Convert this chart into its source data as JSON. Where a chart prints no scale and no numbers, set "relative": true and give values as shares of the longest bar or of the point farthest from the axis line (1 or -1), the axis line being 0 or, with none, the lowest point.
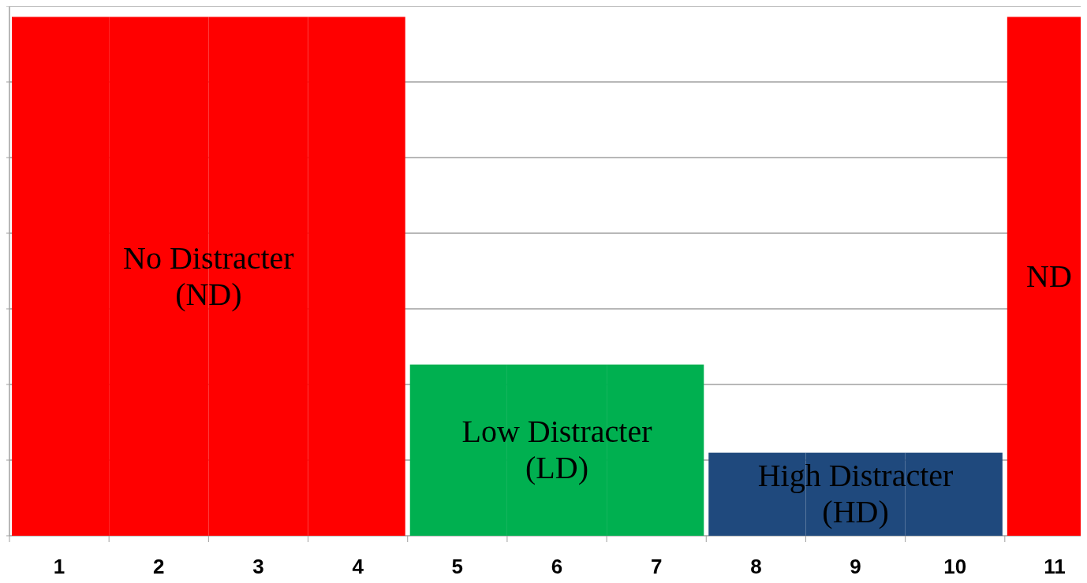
{
  "chart_data": {
    "type": "bar",
    "relative": true,
    "grid": true,
    "categories": [
      "1",
      "2",
      "3",
      "4",
      "5",
      "6",
      "7",
      "8",
      "9",
      "10",
      "11"
    ],
    "values": [
      1,
      1,
      1,
      1,
      0.33,
      0.33,
      0.33,
      0.16,
      0.16,
      0.16,
      1
    ],
    "colors": [
      "#ff0000",
      "#ff0000",
      "#ff0000",
      "#ff0000",
      "#00b050",
      "#00b050",
      "#00b050",
      "#1f497d",
      "#1f497d",
      "#1f497d",
      "#ff0000"
    ],
    "annotations": [
      "No Distracter\n(ND)",
      "Low Distracter\n(LD)",
      "High Distracter\n(HD)",
      "ND"
    ]
  }
}
